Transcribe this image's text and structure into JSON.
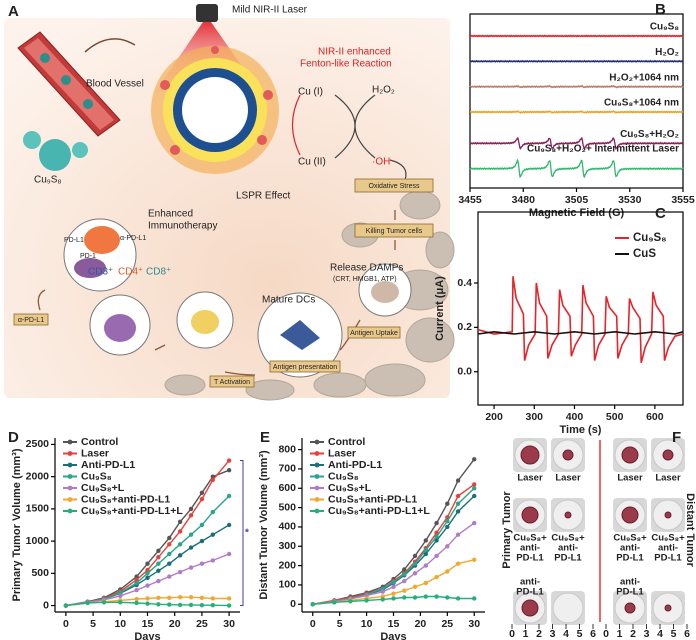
{
  "panel_a": {
    "label": "A",
    "laser": "Mild NIR-II Laser",
    "vessel": "Blood Vessel",
    "particle": "Cu₉S₈",
    "fenton": [
      "NIR-II enhanced",
      "Fenton-like Reaction"
    ],
    "cu1": "Cu (I)",
    "cu2": "Cu (II)",
    "h2o2": "H₂O₂",
    "oh": "·OH",
    "lspr": "LSPR Effect",
    "oxidative": "Oxidative Stress",
    "killing": "Killing Tumor cells",
    "damps": [
      "Release DAMPs",
      "(CRT, HMGB1, ATP)"
    ],
    "dcs": "Mature DCs",
    "uptake": "Antigen Uptake",
    "presentation": "Antigen presentation",
    "activation": "T Activation",
    "cd3": "CD3⁺",
    "cd4": "CD4⁺",
    "cd8": "CD8⁺",
    "immuno": [
      "Enhanced",
      "Immunotherapy"
    ],
    "apdl1_top": "α-PD-L1",
    "pdl1": "PD-L1",
    "pd1": "PD-1",
    "apdl1_left": "α-PD-L1"
  },
  "chart_data": [
    {
      "type": "spectrum",
      "label": "B",
      "xlabel": "Magnetic Field (G)",
      "xlim": [
        3455,
        3555
      ],
      "xticks": [
        3455,
        3480,
        3505,
        3530,
        3555
      ],
      "peaks": [
        3478,
        3493,
        3508,
        3523
      ],
      "series": [
        {
          "name": "Cu₉S₈",
          "color": "#e8222a",
          "amplitude": 0
        },
        {
          "name": "H₂O₂",
          "color": "#1c2f6e",
          "amplitude": 0
        },
        {
          "name": "H₂O₂+1064 nm",
          "color": "#b77b6a",
          "amplitude": 0.1
        },
        {
          "name": "Cu₉S₈+1064 nm",
          "color": "#f0a020",
          "amplitude": 0.1
        },
        {
          "name": "Cu₉S₈+H₂O₂",
          "color": "#8e1d5a",
          "amplitude": 1
        },
        {
          "name": "Cu₉S₈+H₂O₂+ Intermittent Laser",
          "color": "#34b86a",
          "amplitude": 1.6
        }
      ]
    },
    {
      "type": "line",
      "label": "C",
      "xlabel": "Time (s)",
      "ylabel": "Current (μA)",
      "xlim": [
        160,
        670
      ],
      "ylim": [
        -0.15,
        0.72
      ],
      "xticks": [
        200,
        300,
        400,
        500,
        600
      ],
      "yticks": [
        {
          "value": 0,
          "label": "0.0"
        },
        {
          "value": 0.2,
          "label": "0.2"
        },
        {
          "value": 0.4,
          "label": "0.4"
        }
      ],
      "series": [
        {
          "name": "Cu₉S₈",
          "color": "#e8222a",
          "x": [
            160,
            200,
            245,
            247,
            255,
            273,
            276,
            286,
            302,
            305,
            313,
            331,
            334,
            344,
            360,
            363,
            371,
            389,
            392,
            402,
            418,
            421,
            429,
            447,
            450,
            460,
            476,
            479,
            487,
            505,
            508,
            518,
            534,
            537,
            545,
            563,
            566,
            576,
            592,
            595,
            603,
            621,
            624,
            634,
            650,
            670
          ],
          "values": [
            0.19,
            0.17,
            0.18,
            0.43,
            0.33,
            0.26,
            0.05,
            0.12,
            0.17,
            0.4,
            0.31,
            0.25,
            0.06,
            0.12,
            0.17,
            0.37,
            0.3,
            0.25,
            0.07,
            0.12,
            0.17,
            0.39,
            0.31,
            0.25,
            0.05,
            0.12,
            0.17,
            0.34,
            0.29,
            0.25,
            0.06,
            0.12,
            0.17,
            0.33,
            0.29,
            0.24,
            0.04,
            0.11,
            0.17,
            0.36,
            0.3,
            0.25,
            0.05,
            0.11,
            0.16,
            0.17
          ]
        },
        {
          "name": "CuS",
          "color": "#111111",
          "x": [
            160,
            200,
            250,
            300,
            350,
            400,
            450,
            500,
            550,
            600,
            650,
            670
          ],
          "values": [
            0.17,
            0.18,
            0.17,
            0.18,
            0.17,
            0.18,
            0.17,
            0.18,
            0.17,
            0.18,
            0.17,
            0.18
          ]
        }
      ]
    },
    {
      "type": "line",
      "label": "D",
      "xlabel": "Days",
      "ylabel": "Primary Tumor Volume (mm³)",
      "annotation": "*",
      "markers": true,
      "xlim": [
        -2,
        32
      ],
      "ylim": [
        -100,
        2600
      ],
      "xticks": [
        0,
        5,
        10,
        15,
        20,
        25,
        30
      ],
      "yticks": [
        0,
        500,
        1000,
        1500,
        2000,
        2500
      ],
      "x": [
        0,
        4,
        7,
        10,
        13,
        15,
        17,
        19,
        21,
        23,
        25,
        27,
        30
      ],
      "series": [
        {
          "name": "Control",
          "color": "#555555",
          "values": [
            0,
            60,
            120,
            250,
            450,
            650,
            850,
            1050,
            1300,
            1500,
            1750,
            2000,
            2100
          ]
        },
        {
          "name": "Laser",
          "color": "#e8413c",
          "values": [
            0,
            50,
            110,
            220,
            400,
            550,
            750,
            950,
            1150,
            1400,
            1650,
            1950,
            2250
          ]
        },
        {
          "name": "Anti-PD-L1",
          "color": "#1a6f7a",
          "values": [
            0,
            50,
            100,
            190,
            320,
            430,
            540,
            650,
            780,
            900,
            1000,
            1100,
            1250
          ]
        },
        {
          "name": "Cu₉S₈",
          "color": "#2aa58a",
          "values": [
            0,
            50,
            100,
            200,
            350,
            500,
            650,
            800,
            950,
            1100,
            1250,
            1450,
            1700
          ]
        },
        {
          "name": "Cu₉S₈+L",
          "color": "#b07cc6",
          "values": [
            0,
            50,
            90,
            150,
            240,
            310,
            380,
            450,
            520,
            590,
            650,
            700,
            800
          ]
        },
        {
          "name": "Cu₉S₈+anti-PD-L1",
          "color": "#f0a830",
          "values": [
            0,
            40,
            60,
            80,
            100,
            110,
            120,
            120,
            130,
            130,
            120,
            110,
            110
          ]
        },
        {
          "name": "Cu₉S₈+anti-PD-L1+L",
          "color": "#23b07a",
          "values": [
            0,
            40,
            50,
            50,
            40,
            30,
            20,
            15,
            10,
            10,
            5,
            5,
            0
          ]
        }
      ]
    },
    {
      "type": "line",
      "label": "E",
      "xlabel": "Days",
      "ylabel": "Distant Tumor Volume (mm³)",
      "markers": true,
      "xlim": [
        -2,
        32
      ],
      "ylim": [
        -40,
        860
      ],
      "xticks": [
        0,
        5,
        10,
        15,
        20,
        25,
        30
      ],
      "yticks": [
        0,
        100,
        200,
        300,
        400,
        500,
        600,
        700,
        800
      ],
      "x": [
        0,
        4,
        7,
        10,
        13,
        15,
        17,
        19,
        21,
        23,
        25,
        27,
        30
      ],
      "series": [
        {
          "name": "Control",
          "color": "#555555",
          "values": [
            0,
            20,
            40,
            60,
            90,
            130,
            180,
            250,
            330,
            420,
            520,
            640,
            750
          ]
        },
        {
          "name": "Laser",
          "color": "#e8413c",
          "values": [
            0,
            20,
            35,
            55,
            80,
            120,
            160,
            220,
            290,
            370,
            450,
            560,
            620
          ]
        },
        {
          "name": "Anti-PD-L1",
          "color": "#1a6f7a",
          "values": [
            0,
            15,
            30,
            50,
            75,
            110,
            150,
            200,
            260,
            330,
            400,
            480,
            560
          ]
        },
        {
          "name": "Cu₉S₈",
          "color": "#2aa58a",
          "values": [
            0,
            15,
            30,
            50,
            80,
            115,
            155,
            210,
            280,
            350,
            430,
            520,
            600
          ]
        },
        {
          "name": "Cu₉S₈+L",
          "color": "#b07cc6",
          "values": [
            0,
            15,
            28,
            45,
            65,
            90,
            120,
            160,
            200,
            250,
            300,
            360,
            420
          ]
        },
        {
          "name": "Cu₉S₈+anti-PD-L1",
          "color": "#f0a830",
          "values": [
            0,
            10,
            20,
            30,
            40,
            55,
            70,
            90,
            110,
            140,
            170,
            210,
            230
          ]
        },
        {
          "name": "Cu₉S₈+anti-PD-L1+L",
          "color": "#23b07a",
          "values": [
            0,
            10,
            15,
            20,
            25,
            30,
            35,
            35,
            40,
            40,
            35,
            30,
            30
          ]
        }
      ]
    }
  ],
  "panel_f": {
    "label": "F",
    "primary": "Primary Tumor",
    "distant": "Distant Tumor",
    "labels": [
      [
        "Laser"
      ],
      [
        "Cu₉S₈+",
        "anti-",
        "PD-L1"
      ],
      [
        "anti-",
        "PD-L1"
      ],
      [
        "Cu₉S₈+",
        "anti-PD-",
        "L1+L"
      ],
      [
        "Cu₉S₈"
      ]
    ],
    "ruler_left": [
      "0",
      "1",
      "2",
      "3",
      "4",
      "5",
      "6"
    ],
    "ruler_right": [
      "0",
      "1",
      "2",
      "3",
      "4",
      "5",
      "6"
    ]
  }
}
